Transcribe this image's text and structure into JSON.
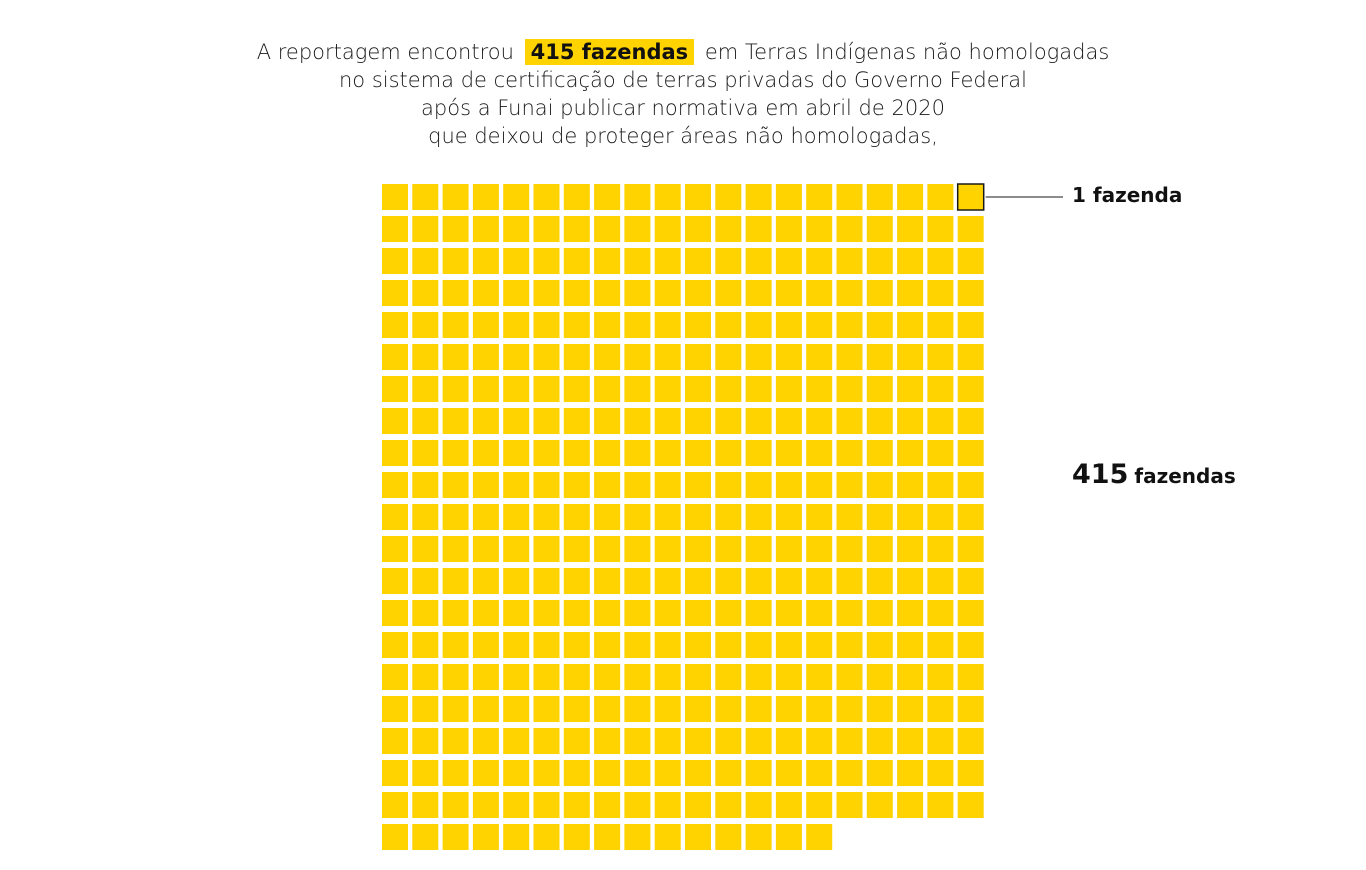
{
  "headline": {
    "line1_pre": "A reportagem encontrou",
    "line1_highlight": "415 fazendas",
    "line1_post": "em Terras Indígenas não homologadas",
    "line2": "no sistema de certificação de terras privadas do Governo Federal",
    "line3": "após a Funai publicar normativa em abril de 2020",
    "line4": "que deixou de proteger áreas não homologadas,"
  },
  "colors": {
    "square": "#ffd300",
    "highlight": "#ffd300",
    "outline": "#1a1a1a"
  },
  "chart_data": {
    "type": "waffle",
    "total": 415,
    "per_square": 1,
    "columns": 20,
    "unit_label": "1 fazenda",
    "total_label_number": "415",
    "total_label_unit": "fazendas"
  }
}
